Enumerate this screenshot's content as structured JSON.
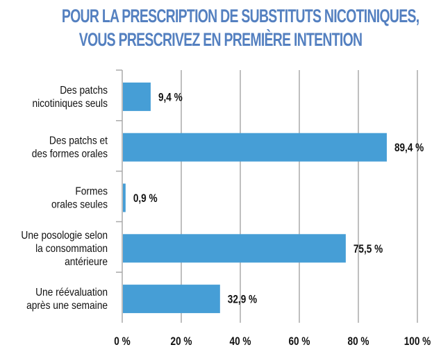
{
  "chart_data": {
    "type": "bar",
    "orientation": "horizontal",
    "title": [
      "POUR LA PRESCRIPTION DE SUBSTITUTS NICOTINIQUES,",
      "VOUS PRESCRIVEZ EN PREMIÈRE INTENTION"
    ],
    "categories": [
      [
        "Des patchs",
        "nicotiniques seuls"
      ],
      [
        "Des patchs et",
        "des formes orales"
      ],
      [
        "Formes",
        "orales seules"
      ],
      [
        "Une posologie selon",
        "la consommation",
        "antérieure"
      ],
      [
        "Une réévaluation",
        "après une semaine"
      ]
    ],
    "values": [
      9.4,
      89.4,
      0.9,
      75.5,
      32.9
    ],
    "data_labels": [
      "9,4 %",
      "89,4 %",
      "0,9 %",
      "75,5 %",
      "32,9 %"
    ],
    "xlim": [
      0,
      100
    ],
    "xticks": [
      0,
      20,
      40,
      60,
      80,
      100
    ],
    "xtick_labels": [
      "0 %",
      "20 %",
      "40 %",
      "60 %",
      "80 %",
      "100 %"
    ],
    "grid": true,
    "bar_color": "#469ed6",
    "title_color": "#5480c0"
  }
}
